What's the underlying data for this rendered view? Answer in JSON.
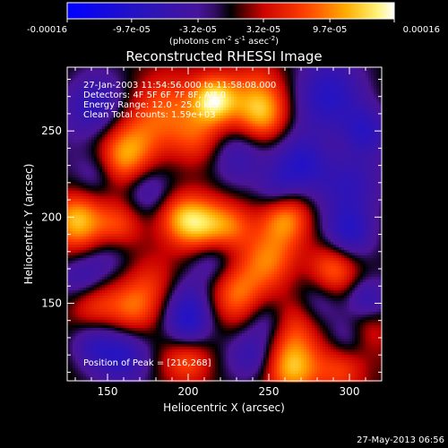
{
  "chart_data": {
    "type": "heatmap",
    "title": "Reconstructed RHESSI Image",
    "xlabel": "Heliocentric X (arcsec)",
    "ylabel": "Heliocentric Y (arcsec)",
    "xlim": [
      125,
      320
    ],
    "ylim": [
      105,
      287
    ],
    "xticks": [
      150,
      200,
      250,
      300
    ],
    "yticks": [
      150,
      200,
      250
    ],
    "xtick_labels": [
      "150",
      "200",
      "250",
      "300"
    ],
    "ytick_labels": [
      "150",
      "200",
      "250"
    ],
    "colorbar": {
      "min": -0.00016,
      "max": 0.00016,
      "ticks": [
        -0.00016,
        -9.7e-05,
        -3.2e-05,
        3.2e-05,
        9.7e-05,
        0.00016
      ],
      "tick_labels": [
        "-0.00016",
        "-9.7e-05",
        "-3.2e-05",
        "3.2e-05",
        "9.7e-05",
        "0.00016"
      ],
      "unit_main": "(photons cm",
      "unit_exp1": "-2",
      "unit_mid": " s",
      "unit_exp2": "-1",
      "unit_tail": " asec",
      "unit_exp3": "-2",
      "unit_close": ")",
      "colors": [
        "#0000ff",
        "#2a0070",
        "#4a10a0",
        "#ff0000",
        "#ff8800",
        "#ffffff"
      ]
    },
    "annotations": {
      "time_range": "27-Jan-2003 11:54:56.000 to 11:58:08.000",
      "detectors": "Detectors: 4F 5F 6F 7F 8F, Att 0",
      "energy": "Energy Range: 12.0 - 25.0 keV",
      "clean": "Clean     Total counts: 1.59e+03",
      "peak": "Position of Peak = [216,268]"
    },
    "peak": [
      216,
      268
    ],
    "sources": [
      {
        "x": 216,
        "y": 268,
        "v": 1.0,
        "s": 10
      },
      {
        "x": 183,
        "y": 260,
        "v": 0.55,
        "s": 16
      },
      {
        "x": 240,
        "y": 270,
        "v": 0.6,
        "s": 14
      },
      {
        "x": 205,
        "y": 245,
        "v": 0.45,
        "s": 12
      },
      {
        "x": 247,
        "y": 258,
        "v": 0.55,
        "s": 11
      },
      {
        "x": 165,
        "y": 240,
        "v": 0.5,
        "s": 12
      },
      {
        "x": 155,
        "y": 230,
        "v": 0.45,
        "s": 11
      },
      {
        "x": 140,
        "y": 190,
        "v": 0.55,
        "s": 15
      },
      {
        "x": 130,
        "y": 200,
        "v": 0.5,
        "s": 10
      },
      {
        "x": 158,
        "y": 195,
        "v": 0.45,
        "s": 10
      },
      {
        "x": 210,
        "y": 195,
        "v": 0.85,
        "s": 12
      },
      {
        "x": 195,
        "y": 200,
        "v": 0.5,
        "s": 10
      },
      {
        "x": 228,
        "y": 195,
        "v": 0.5,
        "s": 10
      },
      {
        "x": 230,
        "y": 155,
        "v": 0.6,
        "s": 13
      },
      {
        "x": 250,
        "y": 175,
        "v": 0.65,
        "s": 12
      },
      {
        "x": 260,
        "y": 200,
        "v": 0.7,
        "s": 11
      },
      {
        "x": 290,
        "y": 170,
        "v": 0.65,
        "s": 11
      },
      {
        "x": 265,
        "y": 140,
        "v": 0.6,
        "s": 13
      },
      {
        "x": 180,
        "y": 160,
        "v": 0.45,
        "s": 13
      },
      {
        "x": 165,
        "y": 145,
        "v": 0.5,
        "s": 11
      },
      {
        "x": 140,
        "y": 150,
        "v": 0.5,
        "s": 11
      },
      {
        "x": 200,
        "y": 118,
        "v": 0.55,
        "s": 11
      },
      {
        "x": 265,
        "y": 112,
        "v": 0.8,
        "s": 12
      },
      {
        "x": 295,
        "y": 112,
        "v": 0.55,
        "s": 11
      },
      {
        "x": 310,
        "y": 135,
        "v": 0.4,
        "s": 10
      },
      {
        "x": 230,
        "y": 235,
        "v": -0.55,
        "s": 12
      },
      {
        "x": 285,
        "y": 270,
        "v": -0.65,
        "s": 16
      },
      {
        "x": 270,
        "y": 230,
        "v": -0.6,
        "s": 12
      },
      {
        "x": 300,
        "y": 220,
        "v": -0.55,
        "s": 14
      },
      {
        "x": 140,
        "y": 265,
        "v": -0.6,
        "s": 13
      },
      {
        "x": 145,
        "y": 225,
        "v": -0.45,
        "s": 10
      },
      {
        "x": 175,
        "y": 215,
        "v": -0.4,
        "s": 10
      },
      {
        "x": 150,
        "y": 178,
        "v": -0.5,
        "s": 11
      },
      {
        "x": 135,
        "y": 165,
        "v": -0.55,
        "s": 10
      },
      {
        "x": 200,
        "y": 150,
        "v": -0.5,
        "s": 12
      },
      {
        "x": 200,
        "y": 135,
        "v": -0.55,
        "s": 10
      },
      {
        "x": 215,
        "y": 175,
        "v": -0.45,
        "s": 10
      },
      {
        "x": 250,
        "y": 140,
        "v": -0.5,
        "s": 10
      },
      {
        "x": 280,
        "y": 150,
        "v": -0.45,
        "s": 11
      },
      {
        "x": 300,
        "y": 190,
        "v": -0.6,
        "s": 11
      },
      {
        "x": 310,
        "y": 152,
        "v": -0.55,
        "s": 9
      },
      {
        "x": 160,
        "y": 120,
        "v": -0.55,
        "s": 12
      },
      {
        "x": 140,
        "y": 125,
        "v": -0.45,
        "s": 10
      },
      {
        "x": 240,
        "y": 120,
        "v": -0.45,
        "s": 10
      },
      {
        "x": 300,
        "y": 130,
        "v": -0.4,
        "s": 9
      },
      {
        "x": 310,
        "y": 250,
        "v": -0.55,
        "s": 10
      },
      {
        "x": 255,
        "y": 215,
        "v": -0.4,
        "s": 9
      }
    ]
  },
  "footer": {
    "date_stamp": "27-May-2013 06:56"
  }
}
